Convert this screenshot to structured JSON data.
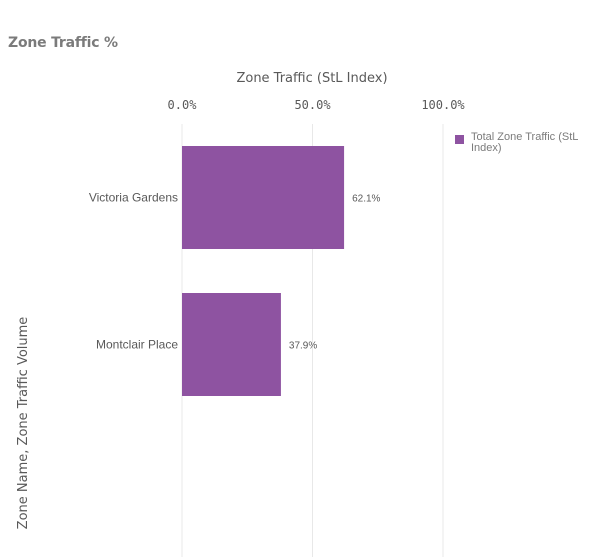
{
  "title": "Zone Traffic %",
  "chart_data": {
    "type": "bar",
    "orientation": "horizontal",
    "categories": [
      "Victoria Gardens",
      "Montclair Place"
    ],
    "series": [
      {
        "name": "Total Zone Traffic (StL Index)",
        "values": [
          62.1,
          37.9
        ],
        "value_labels": [
          "62.1%",
          "37.9%"
        ]
      }
    ],
    "xlabel": "Zone Traffic (StL Index)",
    "ylabel": "Zone Name, Zone Traffic Volume",
    "xlim": [
      0,
      100
    ],
    "x_ticks": [
      0,
      50,
      100
    ],
    "x_tick_labels": [
      "0.0%",
      "50.0%",
      "100.0%"
    ],
    "x_axis_position": "top",
    "grid": true,
    "legend_position": "top-right"
  },
  "colors": {
    "bar": "#8e53a1",
    "grid": "#e8e8e8",
    "text": "#595959"
  }
}
